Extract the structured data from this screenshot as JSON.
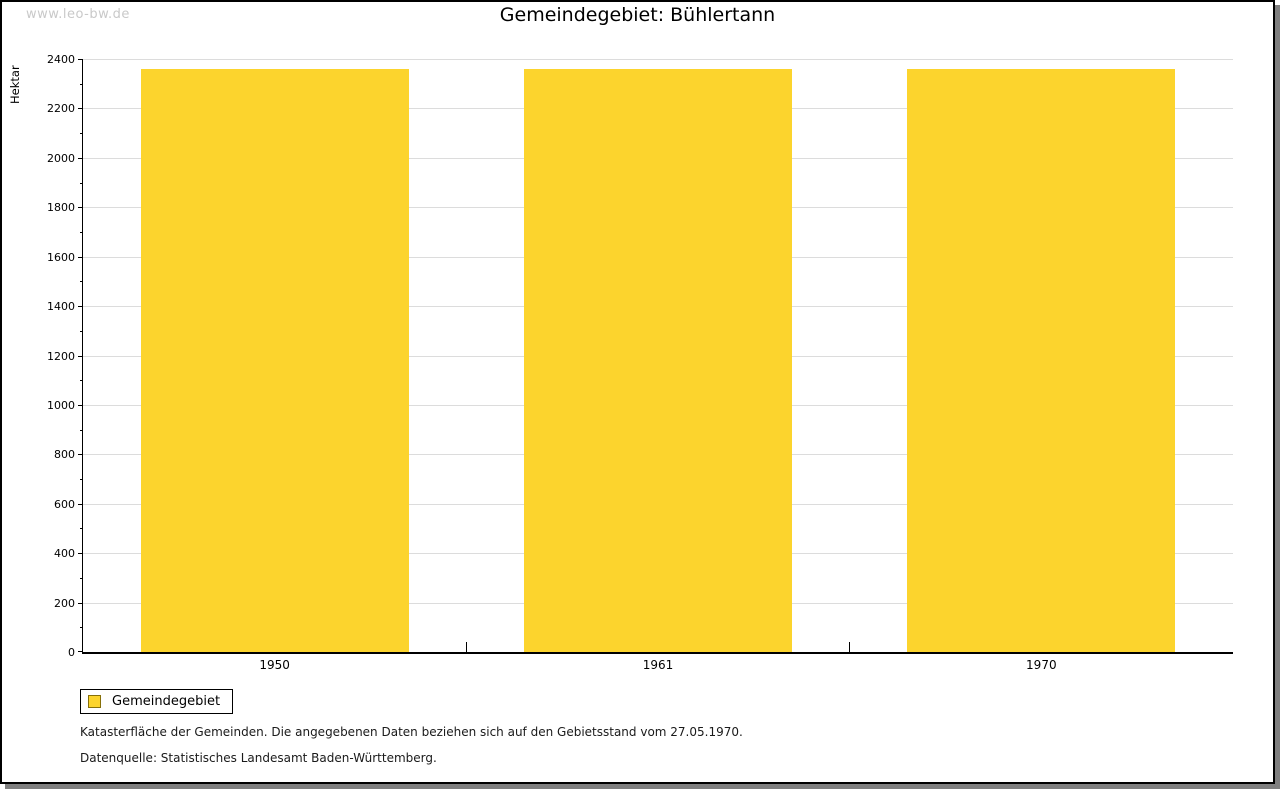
{
  "watermark": "www.leo-bw.de",
  "chart_data": {
    "type": "bar",
    "title": "Gemeindegebiet: Bühlertann",
    "ylabel": "Hektar",
    "xlabel": "",
    "categories": [
      "1950",
      "1961",
      "1970"
    ],
    "series": [
      {
        "name": "Gemeindegebiet",
        "values": [
          2358,
          2358,
          2358
        ]
      }
    ],
    "ylim": [
      0,
      2400
    ],
    "ytick_step": 200,
    "yminor_step": 100,
    "grid": "horizontal-on",
    "legend_position": "bottom-left",
    "bar_color": "#fcd42d",
    "gridline_color": "#dcdcdc",
    "axis_color": "#000000"
  },
  "legend": {
    "label": "Gemeindegebiet",
    "swatch_color": "#fcd42d",
    "swatch_border": "#86700a"
  },
  "footnotes": [
    "Katasterfläche der Gemeinden. Die angegebenen Daten beziehen sich auf den Gebietsstand vom 27.05.1970.",
    "Datenquelle: Statistisches Landesamt Baden-Württemberg."
  ]
}
